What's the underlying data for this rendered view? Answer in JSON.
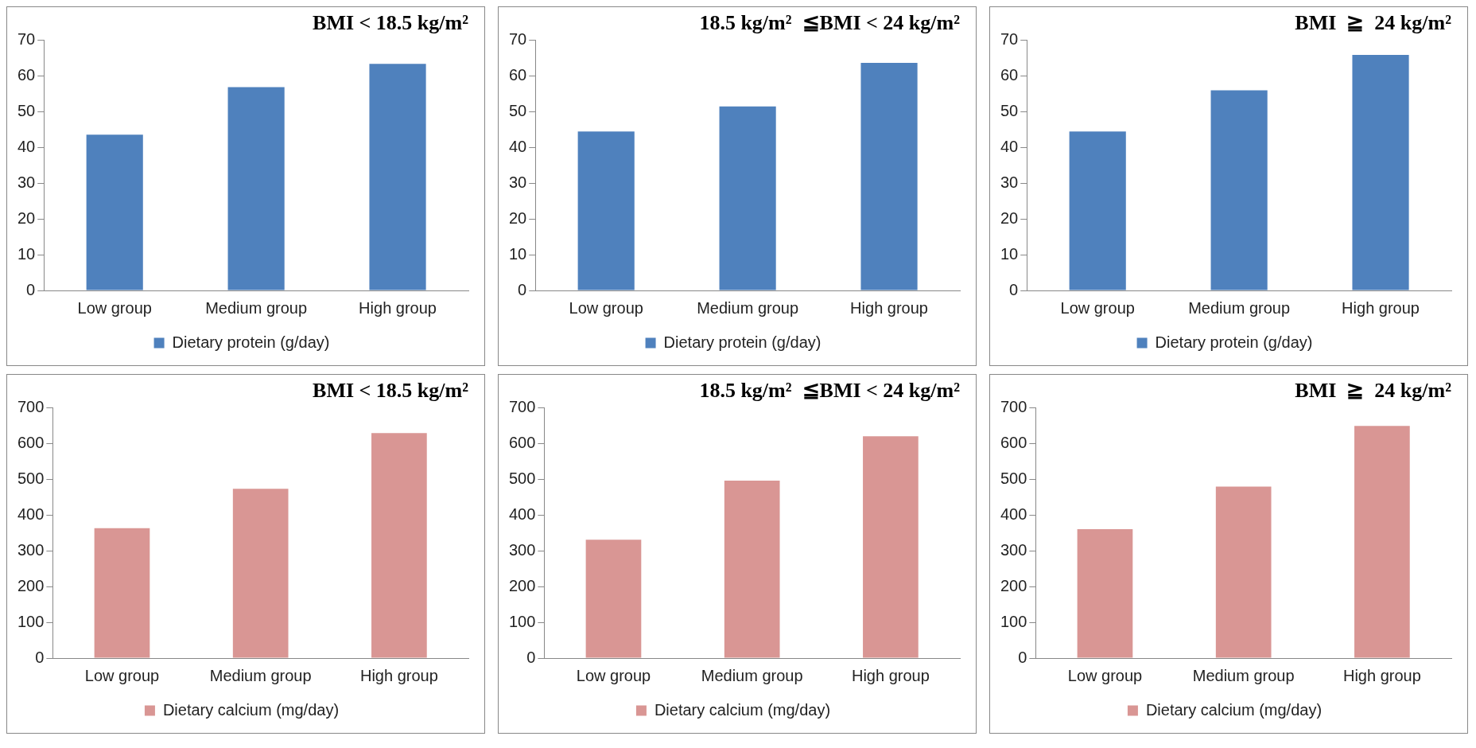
{
  "chart_data": [
    {
      "type": "bar",
      "title": "BMI < 18.5 kg/m²",
      "categories": [
        "Low group",
        "Medium group",
        "High group"
      ],
      "series": [
        {
          "name": "Dietary protein (g/day)",
          "color": "#4f81bd",
          "values": [
            43.5,
            56.8,
            63.3
          ]
        }
      ],
      "ylim": [
        0,
        70
      ],
      "yticks": [
        0,
        10,
        20,
        30,
        40,
        50,
        60,
        70
      ],
      "grid": false,
      "legend": "bottom"
    },
    {
      "type": "bar",
      "title": "18.5 kg/m²  ≦BMI < 24 kg/m²",
      "categories": [
        "Low group",
        "Medium group",
        "High group"
      ],
      "series": [
        {
          "name": "Dietary protein (g/day)",
          "color": "#4f81bd",
          "values": [
            44.4,
            51.4,
            63.6
          ]
        }
      ],
      "ylim": [
        0,
        70
      ],
      "yticks": [
        0,
        10,
        20,
        30,
        40,
        50,
        60,
        70
      ],
      "grid": false,
      "legend": "bottom"
    },
    {
      "type": "bar",
      "title": "BMI  ≧  24 kg/m²",
      "categories": [
        "Low group",
        "Medium group",
        "High group"
      ],
      "series": [
        {
          "name": "Dietary protein (g/day)",
          "color": "#4f81bd",
          "values": [
            44.4,
            55.9,
            65.8
          ]
        }
      ],
      "ylim": [
        0,
        70
      ],
      "yticks": [
        0,
        10,
        20,
        30,
        40,
        50,
        60,
        70
      ],
      "grid": false,
      "legend": "bottom"
    },
    {
      "type": "bar",
      "title": "BMI < 18.5 kg/m²",
      "categories": [
        "Low group",
        "Medium group",
        "High group"
      ],
      "series": [
        {
          "name": "Dietary calcium (mg/day)",
          "color": "#d99694",
          "values": [
            363,
            473,
            629
          ]
        }
      ],
      "ylim": [
        0,
        700
      ],
      "yticks": [
        0,
        100,
        200,
        300,
        400,
        500,
        600,
        700
      ],
      "grid": false,
      "legend": "bottom"
    },
    {
      "type": "bar",
      "title": "18.5 kg/m²  ≦BMI < 24 kg/m²",
      "categories": [
        "Low group",
        "Medium group",
        "High group"
      ],
      "series": [
        {
          "name": "Dietary calcium (mg/day)",
          "color": "#d99694",
          "values": [
            331,
            496,
            620
          ]
        }
      ],
      "ylim": [
        0,
        700
      ],
      "yticks": [
        0,
        100,
        200,
        300,
        400,
        500,
        600,
        700
      ],
      "grid": false,
      "legend": "bottom"
    },
    {
      "type": "bar",
      "title": "BMI  ≧  24 kg/m²",
      "categories": [
        "Low group",
        "Medium group",
        "High group"
      ],
      "series": [
        {
          "name": "Dietary calcium (mg/day)",
          "color": "#d99694",
          "values": [
            360,
            479,
            649
          ]
        }
      ],
      "ylim": [
        0,
        700
      ],
      "yticks": [
        0,
        100,
        200,
        300,
        400,
        500,
        600,
        700
      ],
      "grid": false,
      "legend": "bottom"
    }
  ]
}
